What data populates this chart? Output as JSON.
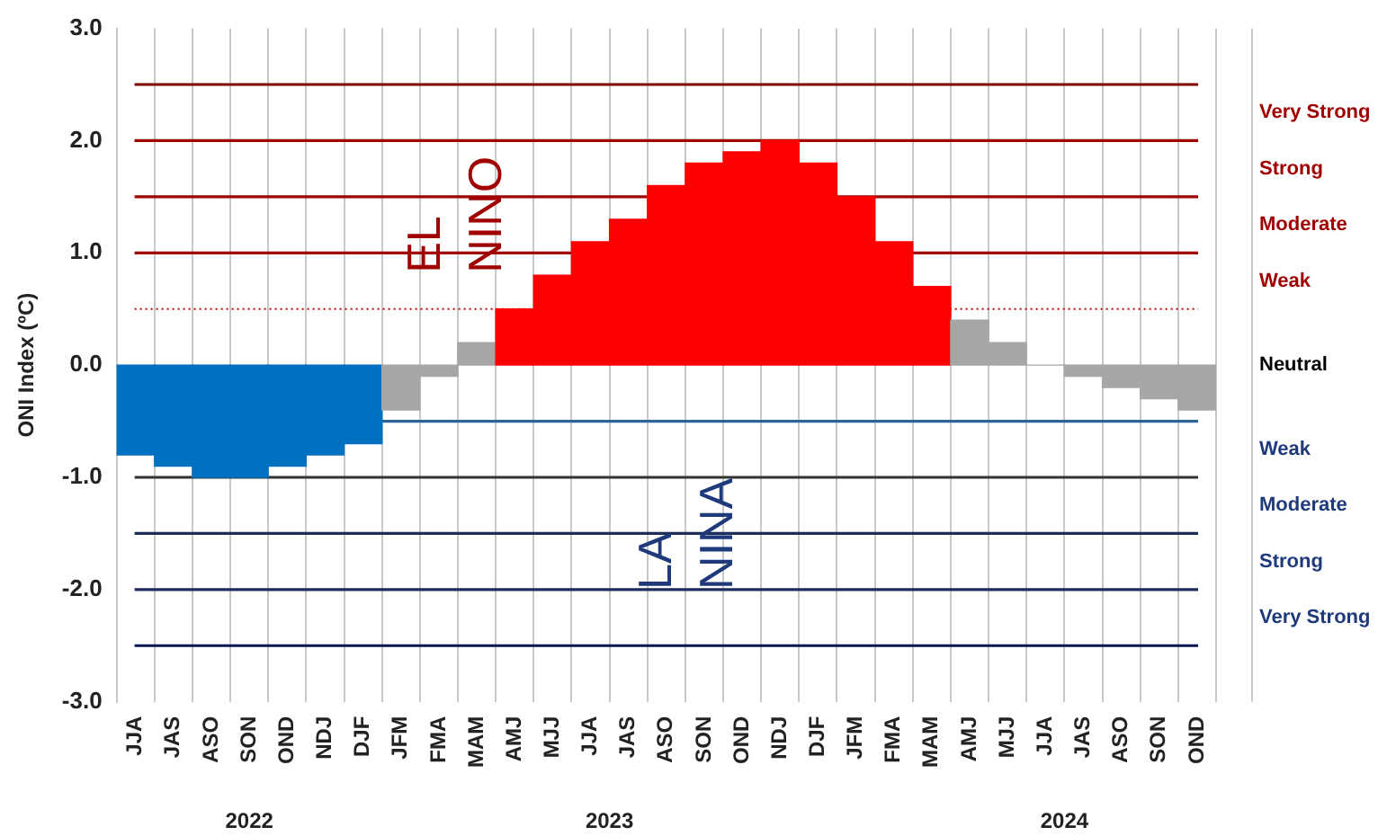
{
  "chart_data": {
    "type": "bar",
    "ylabel": "ONI Index (ºC)",
    "categories": [
      "JJA",
      "JAS",
      "ASO",
      "SON",
      "OND",
      "NDJ",
      "DJF",
      "JFM",
      "FMA",
      "MAM",
      "AMJ",
      "MJJ",
      "JJA",
      "JAS",
      "ASO",
      "SON",
      "OND",
      "NDJ",
      "DJF",
      "JFM",
      "FMA",
      "MAM",
      "AMJ",
      "MJJ",
      "JJA",
      "JAS",
      "ASO",
      "SON",
      "OND"
    ],
    "values": [
      -0.8,
      -0.9,
      -1.0,
      -1.0,
      -0.9,
      -0.8,
      -0.7,
      -0.4,
      -0.1,
      0.2,
      0.5,
      0.8,
      1.1,
      1.3,
      1.6,
      1.8,
      1.9,
      2.0,
      1.8,
      1.5,
      1.1,
      0.7,
      0.4,
      0.2,
      0,
      -0.1,
      -0.2,
      -0.3,
      -0.4
    ],
    "colors": [
      "#0070c0",
      "#0070c0",
      "#0070c0",
      "#0070c0",
      "#0070c0",
      "#0070c0",
      "#0070c0",
      "#a6a6a6",
      "#a6a6a6",
      "#a6a6a6",
      "#ff0000",
      "#ff0000",
      "#ff0000",
      "#ff0000",
      "#ff0000",
      "#ff0000",
      "#ff0000",
      "#ff0000",
      "#ff0000",
      "#ff0000",
      "#ff0000",
      "#ff0000",
      "#a6a6a6",
      "#a6a6a6",
      "#a6a6a6",
      "#a6a6a6",
      "#a6a6a6",
      "#a6a6a6",
      "#a6a6a6"
    ],
    "ylim": [
      -3,
      3
    ],
    "yticks": [
      {
        "value": -3,
        "label": "-3.0"
      },
      {
        "value": -2,
        "label": "-2.0"
      },
      {
        "value": -1,
        "label": "-1.0"
      },
      {
        "value": 0,
        "label": "0.0"
      },
      {
        "value": 1,
        "label": "1.0"
      },
      {
        "value": 2,
        "label": "2.0"
      },
      {
        "value": 3,
        "label": "3.0"
      }
    ],
    "grid": "x",
    "legend": false,
    "ref_lines": [
      {
        "axis": "y",
        "value": 2.5,
        "color": "#800000",
        "line_style": "solid"
      },
      {
        "axis": "y",
        "value": 2.0,
        "color": "#a00000",
        "line_style": "solid"
      },
      {
        "axis": "y",
        "value": 1.5,
        "color": "#a00000",
        "line_style": "solid"
      },
      {
        "axis": "y",
        "value": 1.0,
        "color": "#a00000",
        "line_style": "solid"
      },
      {
        "axis": "y",
        "value": 0.5,
        "color": "#c00000",
        "line_style": "dotted"
      },
      {
        "axis": "y",
        "value": -0.5,
        "color": "#2e6496",
        "line_style": "solid"
      },
      {
        "axis": "y",
        "value": -1.0,
        "color": "#333333",
        "line_style": "solid"
      },
      {
        "axis": "y",
        "value": -1.5,
        "color": "#1f2d5a",
        "line_style": "solid"
      },
      {
        "axis": "y",
        "value": -2.0,
        "color": "#1f2d5a",
        "line_style": "solid"
      },
      {
        "axis": "y",
        "value": -2.5,
        "color": "#0a1450",
        "line_style": "solid"
      }
    ],
    "annotations": [
      "EL\nNINO",
      "LA\nNINA",
      "2022",
      "2023",
      "2024",
      "Very Strong",
      "Strong",
      "Moderate",
      "Weak",
      "Neutral",
      "Weak",
      "Moderate",
      "Strong",
      "Very Strong"
    ]
  }
}
